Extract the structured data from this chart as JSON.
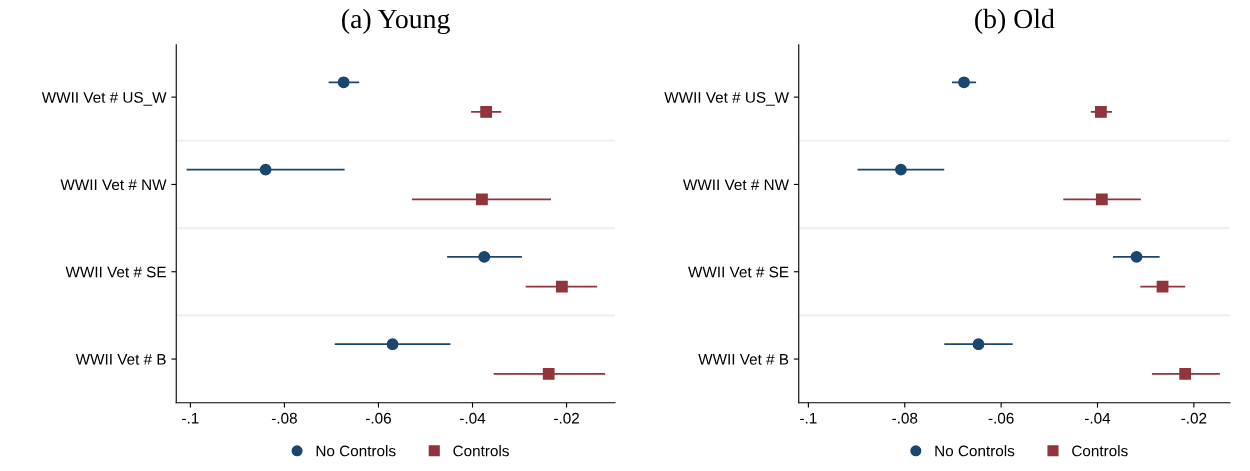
{
  "chart_data": [
    {
      "type": "scatter",
      "orientation": "horizontal",
      "title": "(a) Young",
      "categories": [
        "WWII Vet # US_W",
        "WWII Vet # NW",
        "WWII Vet # SE",
        "WWII Vet # B"
      ],
      "xlim": [
        -0.103,
        -0.0097
      ],
      "xticks": [
        {
          "value": -0.1,
          "label": "-.1"
        },
        {
          "value": -0.08,
          "label": "-.08"
        },
        {
          "value": -0.06,
          "label": "-.06"
        },
        {
          "value": -0.04,
          "label": "-.04"
        },
        {
          "value": -0.02,
          "label": "-.02"
        }
      ],
      "grid": "y",
      "legend": "bottom",
      "series": [
        {
          "name": "No Controls",
          "color": "#1a476f",
          "marker": "circle",
          "values": [
            -0.0674,
            -0.084,
            -0.0375,
            -0.057
          ],
          "errors": [
            [
              -0.0706,
              -0.0641
            ],
            [
              -0.1008,
              -0.0672
            ],
            [
              -0.0454,
              -0.0295
            ],
            [
              -0.0693,
              -0.0447
            ]
          ]
        },
        {
          "name": "Controls",
          "color": "#90353b",
          "marker": "square",
          "values": [
            -0.0371,
            -0.038,
            -0.021,
            -0.0238
          ],
          "errors": [
            [
              -0.0403,
              -0.0339
            ],
            [
              -0.0529,
              -0.0233
            ],
            [
              -0.0287,
              -0.0135
            ],
            [
              -0.0355,
              -0.0118
            ]
          ]
        }
      ]
    },
    {
      "type": "scatter",
      "orientation": "horizontal",
      "title": "(b) Old",
      "categories": [
        "WWII Vet # US_W",
        "WWII Vet # NW",
        "WWII Vet # SE",
        "WWII Vet # B"
      ],
      "xlim": [
        -0.102,
        -0.0125
      ],
      "xticks": [
        {
          "value": -0.1,
          "label": "-.1"
        },
        {
          "value": -0.08,
          "label": "-.08"
        },
        {
          "value": -0.06,
          "label": "-.06"
        },
        {
          "value": -0.04,
          "label": "-.04"
        },
        {
          "value": -0.02,
          "label": "-.02"
        }
      ],
      "grid": "y",
      "legend": "bottom",
      "series": [
        {
          "name": "No Controls",
          "color": "#1a476f",
          "marker": "circle",
          "values": [
            -0.0677,
            -0.0808,
            -0.0319,
            -0.0647
          ],
          "errors": [
            [
              -0.0702,
              -0.0652
            ],
            [
              -0.0898,
              -0.0718
            ],
            [
              -0.0368,
              -0.0271
            ],
            [
              -0.0718,
              -0.0576
            ]
          ]
        },
        {
          "name": "Controls",
          "color": "#90353b",
          "marker": "square",
          "values": [
            -0.0393,
            -0.0391,
            -0.0265,
            -0.0218
          ],
          "errors": [
            [
              -0.0414,
              -0.037
            ],
            [
              -0.0471,
              -0.031
            ],
            [
              -0.0311,
              -0.0218
            ],
            [
              -0.0287,
              -0.0146
            ]
          ]
        }
      ]
    }
  ]
}
